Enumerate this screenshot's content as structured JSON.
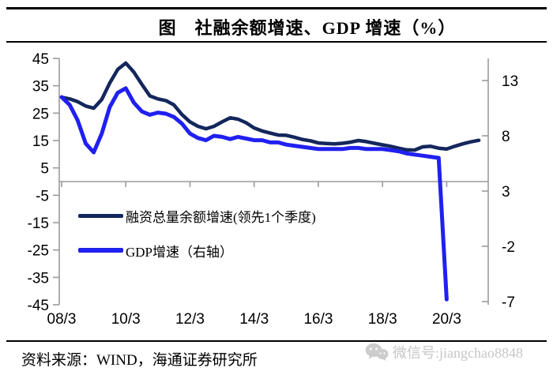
{
  "header": {
    "title": "图　社融余额增速、GDP 增速（%）"
  },
  "chart_data": {
    "type": "line",
    "title": "社融余额增速、GDP增速（%）",
    "x_unit": "quarterly, from 2008Q1",
    "x_tick_labels": [
      "08/3",
      "10/3",
      "12/3",
      "14/3",
      "16/3",
      "18/3",
      "20/3"
    ],
    "left_axis": {
      "ticks": [
        45,
        35,
        25,
        15,
        5,
        -5,
        -15,
        -25,
        -35,
        -45
      ],
      "min": -45,
      "max": 45
    },
    "right_axis": {
      "ticks": [
        13,
        8,
        3,
        -2,
        -7
      ],
      "min": -7,
      "max": 13
    },
    "grid": "none",
    "legend_position": "inside-left",
    "series": [
      {
        "name": "融资总量余额增速(领先1个季度)",
        "axis": "left",
        "color": "#14275c",
        "stroke_width": 4.5,
        "values": [
          30.8,
          30.2,
          29.2,
          27.6,
          26.8,
          30.0,
          36.0,
          41.0,
          43.3,
          40.0,
          35.5,
          31.3,
          30.2,
          29.6,
          28.0,
          24.5,
          21.8,
          20.2,
          19.3,
          20.2,
          21.8,
          23.3,
          22.8,
          21.5,
          19.6,
          18.5,
          17.7,
          17.0,
          16.9,
          16.2,
          15.4,
          14.9,
          14.1,
          13.9,
          13.8,
          14.0,
          14.4,
          15.0,
          14.6,
          14.0,
          13.4,
          12.9,
          12.2,
          11.6,
          11.5,
          12.7,
          12.9,
          12.2,
          11.9,
          12.9,
          13.8,
          14.5,
          15.1
        ]
      },
      {
        "name": "GDP增速（右轴）",
        "axis": "right",
        "color": "#2020f0",
        "stroke_width": 5,
        "values": [
          11.5,
          10.8,
          9.4,
          7.3,
          6.5,
          8.2,
          10.6,
          11.9,
          12.3,
          11.0,
          10.2,
          9.9,
          10.1,
          10.0,
          9.7,
          9.1,
          8.2,
          7.8,
          7.6,
          8.0,
          7.9,
          7.7,
          7.9,
          7.75,
          7.6,
          7.6,
          7.4,
          7.4,
          7.2,
          7.1,
          7.0,
          6.9,
          6.8,
          6.8,
          6.8,
          6.8,
          6.9,
          6.9,
          6.8,
          6.8,
          6.8,
          6.7,
          6.6,
          6.4,
          6.3,
          6.2,
          6.1,
          6.0,
          -6.8
        ]
      }
    ],
    "axis_color": "#9b9b9b",
    "zero_line": true
  },
  "legend": {
    "items": [
      {
        "label": "融资总量余额增速(领先1个季度)",
        "color": "#14275c"
      },
      {
        "label": "GDP增速（右轴）",
        "color": "#2020f0"
      }
    ]
  },
  "footer": {
    "source": "资料来源：WIND，海通证券研究所"
  },
  "watermark": {
    "icon": "wechat-icon",
    "text": "微信号:jiangchao8848"
  }
}
